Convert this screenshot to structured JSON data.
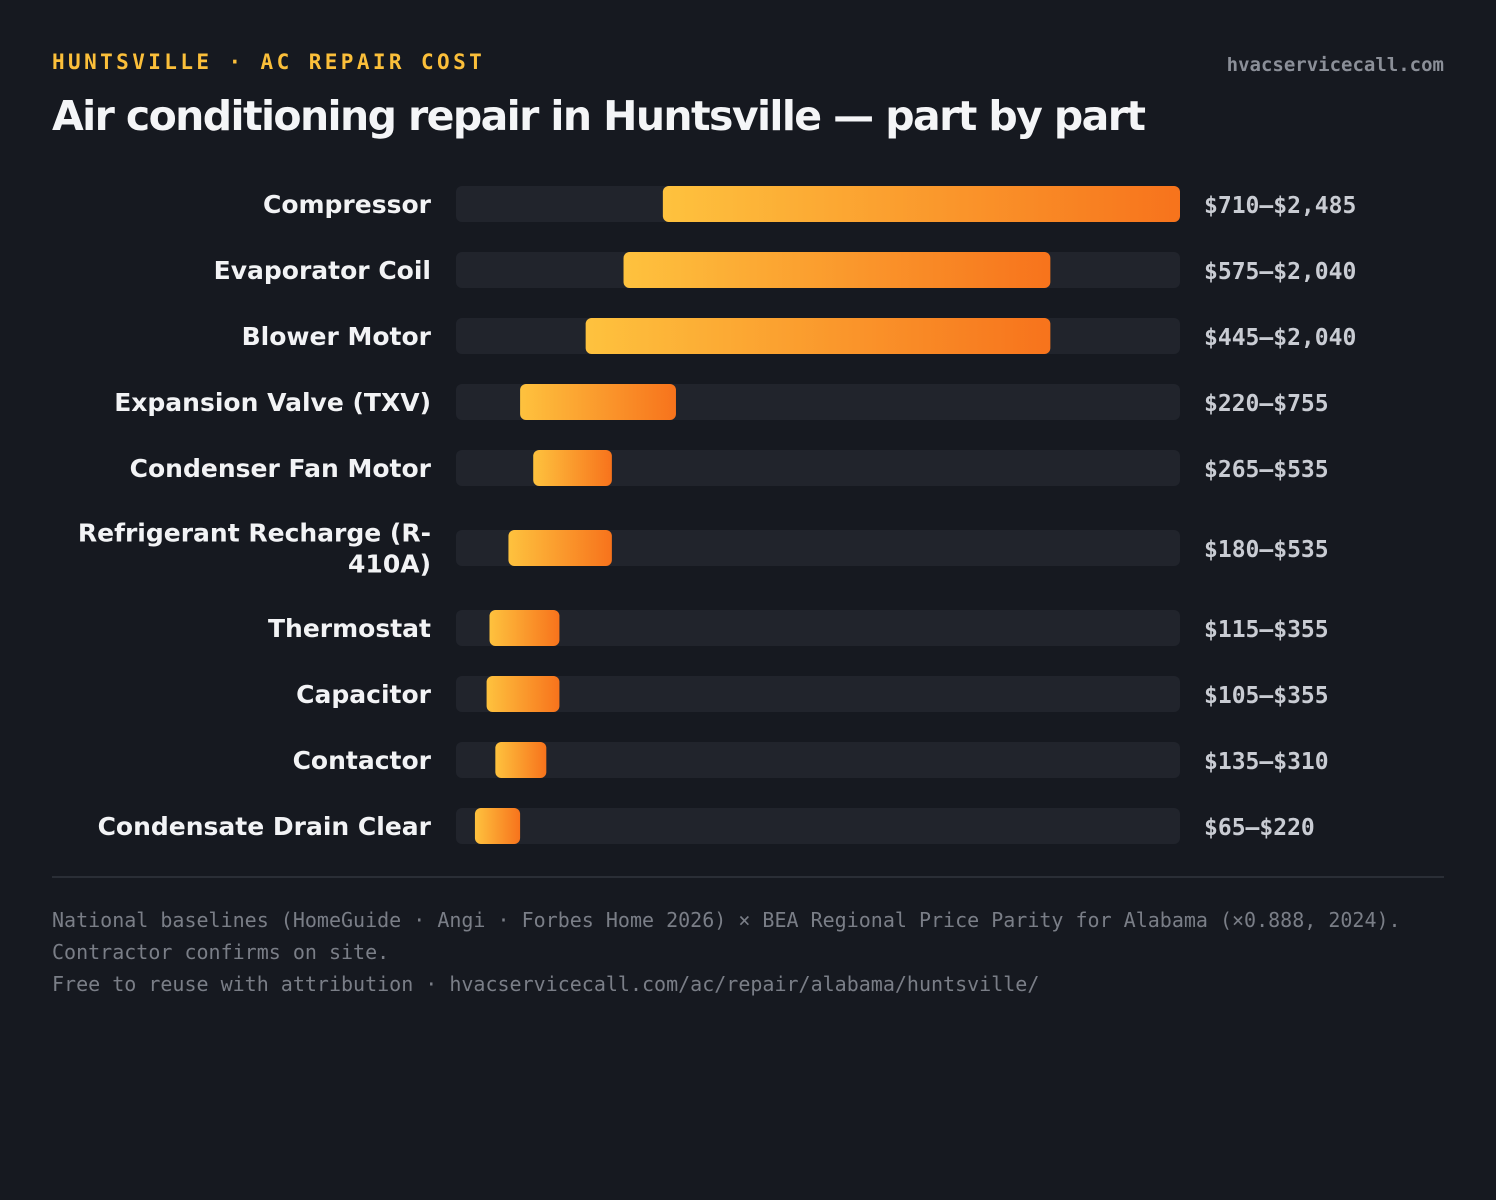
{
  "header": {
    "eyebrow": "HUNTSVILLE · AC REPAIR COST",
    "site": "hvacservicecall.com",
    "title": "Air conditioning repair in Huntsville — part by part"
  },
  "colors": {
    "background": "#161920",
    "track": "#21242c",
    "bar_start": "#fec23e",
    "bar_end": "#f7731c",
    "eyebrow": "#fbbf3a"
  },
  "chart_data": {
    "type": "bar",
    "orientation": "horizontal",
    "style": "floating range bars",
    "categories": [
      "Compressor",
      "Evaporator Coil",
      "Blower Motor",
      "Expansion Valve (TXV)",
      "Condenser Fan Motor",
      "Refrigerant Recharge (R-410A)",
      "Thermostat",
      "Capacitor",
      "Contactor",
      "Condensate Drain Clear"
    ],
    "ranges": [
      [
        710,
        2485
      ],
      [
        575,
        2040
      ],
      [
        445,
        2040
      ],
      [
        220,
        755
      ],
      [
        265,
        535
      ],
      [
        180,
        535
      ],
      [
        115,
        355
      ],
      [
        105,
        355
      ],
      [
        135,
        310
      ],
      [
        65,
        220
      ]
    ],
    "value_labels": [
      "$710–$2,485",
      "$575–$2,040",
      "$445–$2,040",
      "$220–$755",
      "$265–$535",
      "$180–$535",
      "$115–$355",
      "$105–$355",
      "$135–$310",
      "$65–$220"
    ],
    "xlim": [
      0,
      2485
    ],
    "grid": false,
    "legend": false
  },
  "footer": {
    "line1": "National baselines (HomeGuide · Angi · Forbes Home 2026) × BEA Regional Price Parity for Alabama (×0.888, 2024). Contractor confirms on site.",
    "line2": "Free to reuse with attribution · hvacservicecall.com/ac/repair/alabama/huntsville/"
  }
}
